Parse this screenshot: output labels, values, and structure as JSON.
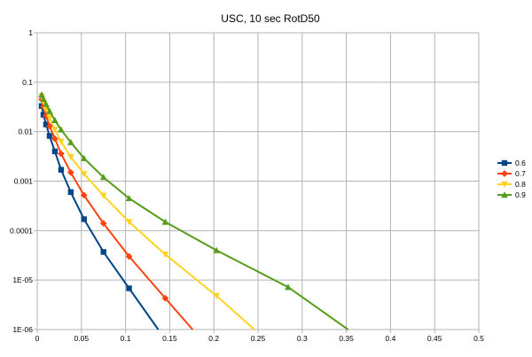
{
  "chart_data": {
    "type": "line",
    "title": "USC, 10 sec RotD50",
    "xlabel": "",
    "ylabel": "",
    "x_ticks": [
      "0",
      "0.05",
      "0.1",
      "0.15",
      "0.2",
      "0.25",
      "0.3",
      "0.35",
      "0.4",
      "0.45",
      "0.5"
    ],
    "y_ticks": [
      "1",
      "0.1",
      "0.01",
      "0.001",
      "0.0001",
      "1E-05",
      "1E-06"
    ],
    "xlim": [
      0,
      0.5
    ],
    "ylim": [
      1e-06,
      1
    ],
    "yscale": "log",
    "grid": true,
    "legend_position": "right",
    "series": [
      {
        "name": "0.6",
        "color": "#004586",
        "marker": "square",
        "x": [
          0.005,
          0.007,
          0.01,
          0.014,
          0.02,
          0.027,
          0.038,
          0.053,
          0.075,
          0.104,
          0.137
        ],
        "y": [
          0.033,
          0.022,
          0.014,
          0.0082,
          0.004,
          0.0017,
          0.0006,
          0.00017,
          3.7e-05,
          6.8e-06,
          1e-06
        ]
      },
      {
        "name": "0.7",
        "color": "#ff420e",
        "marker": "diamond",
        "x": [
          0.005,
          0.007,
          0.01,
          0.014,
          0.02,
          0.027,
          0.038,
          0.053,
          0.075,
          0.104,
          0.145,
          0.176
        ],
        "y": [
          0.045,
          0.032,
          0.021,
          0.013,
          0.0072,
          0.0036,
          0.0015,
          0.00052,
          0.00014,
          3e-05,
          4.3e-06,
          1e-06
        ]
      },
      {
        "name": "0.8",
        "color": "#ffd320",
        "marker": "triangle-down",
        "x": [
          0.005,
          0.007,
          0.01,
          0.014,
          0.02,
          0.027,
          0.038,
          0.053,
          0.075,
          0.104,
          0.145,
          0.203,
          0.246
        ],
        "y": [
          0.052,
          0.04,
          0.028,
          0.019,
          0.011,
          0.0063,
          0.0031,
          0.0014,
          0.00051,
          0.00015,
          3.3e-05,
          4.8e-06,
          1e-06
        ]
      },
      {
        "name": "0.9",
        "color": "#579d1c",
        "marker": "triangle-up",
        "x": [
          0.005,
          0.007,
          0.01,
          0.014,
          0.02,
          0.027,
          0.038,
          0.053,
          0.075,
          0.104,
          0.145,
          0.203,
          0.284,
          0.352
        ],
        "y": [
          0.056,
          0.046,
          0.036,
          0.026,
          0.017,
          0.011,
          0.0061,
          0.0029,
          0.0012,
          0.00045,
          0.00015,
          4e-05,
          7.2e-06,
          1e-06
        ]
      }
    ]
  }
}
